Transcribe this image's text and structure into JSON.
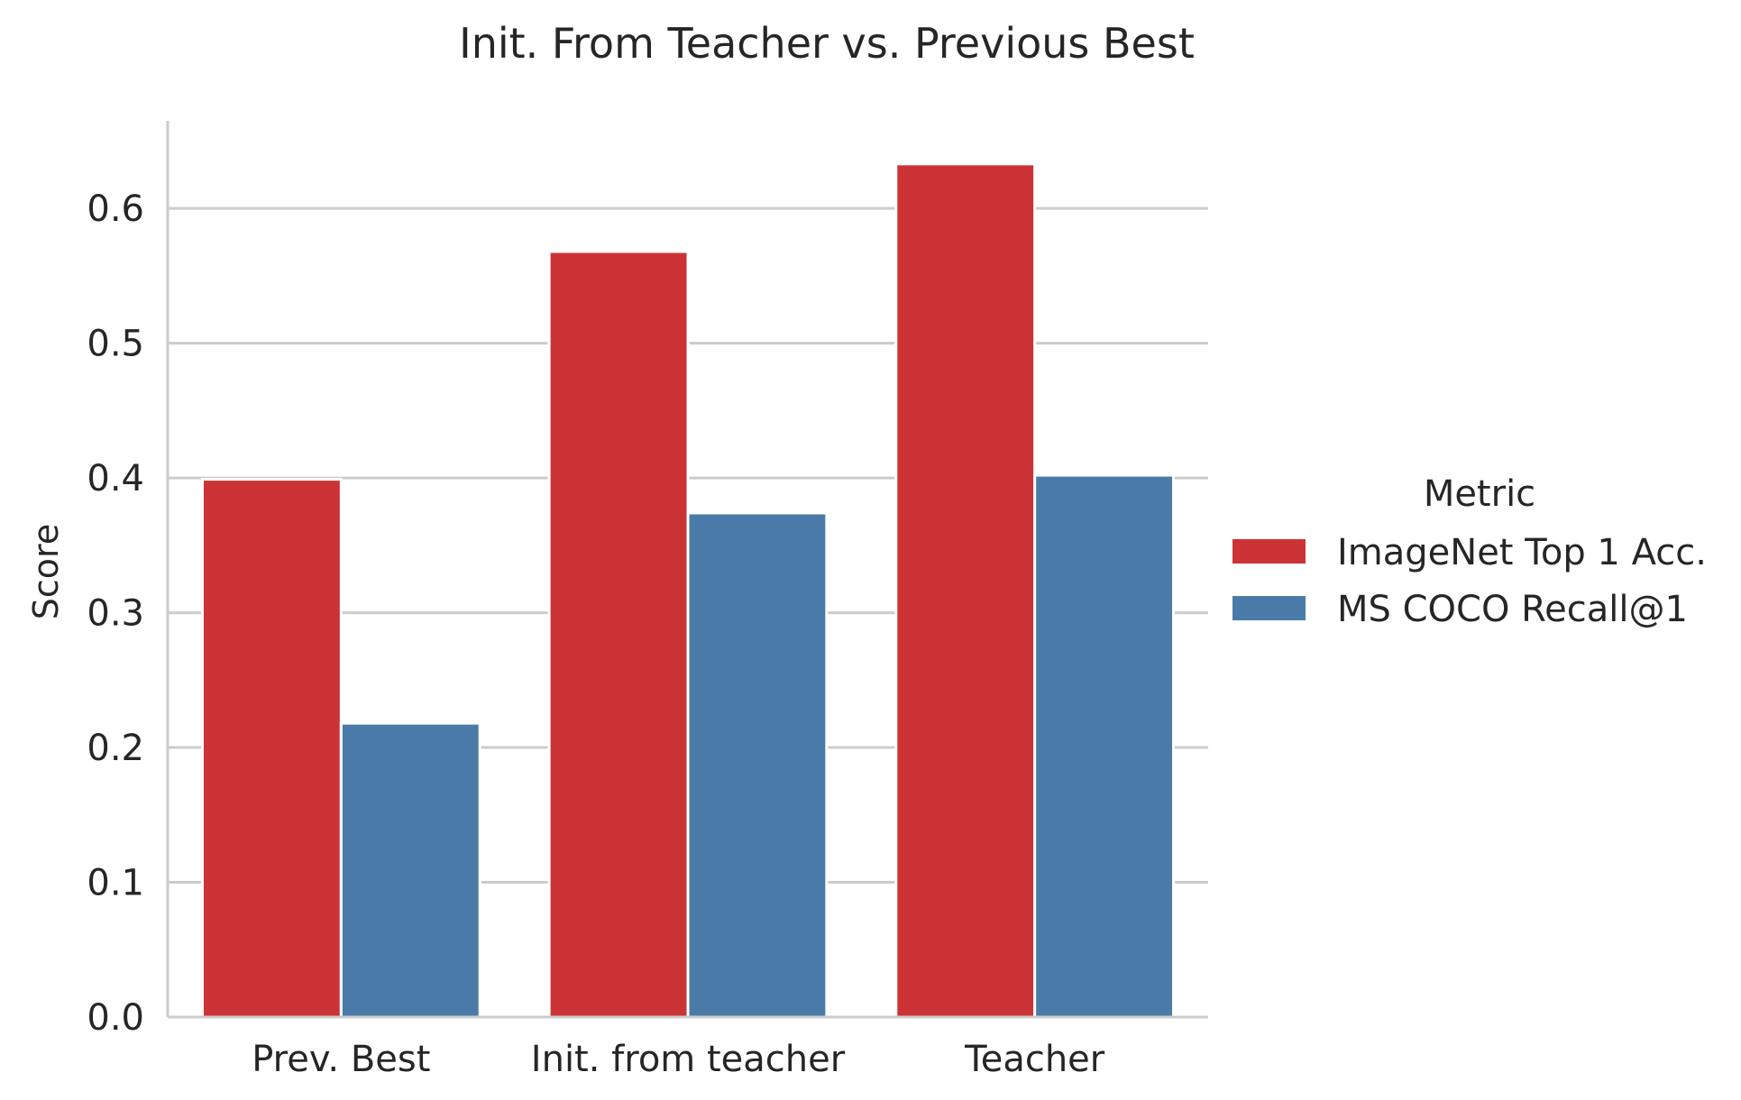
{
  "chart_data": {
    "type": "bar",
    "title": "Init. From Teacher vs. Previous Best",
    "xlabel": "",
    "ylabel": "Score",
    "categories": [
      "Prev. Best",
      "Init. from teacher",
      "Teacher"
    ],
    "series": [
      {
        "name": "ImageNet Top 1 Acc.",
        "values": [
          0.399,
          0.568,
          0.633
        ],
        "color": "#cc3336"
      },
      {
        "name": "MS COCO Recall@1",
        "values": [
          0.218,
          0.374,
          0.402
        ],
        "color": "#4a7ba8"
      }
    ],
    "ylim": [
      0,
      0.665
    ],
    "yticks": [
      0.0,
      0.1,
      0.2,
      0.3,
      0.4,
      0.5,
      0.6
    ],
    "ytick_labels": [
      "0.0",
      "0.1",
      "0.2",
      "0.3",
      "0.4",
      "0.5",
      "0.6"
    ],
    "grid": "horizontal",
    "legend": {
      "title": "Metric",
      "placement": "right"
    },
    "colors": {
      "grid": "#cccccc",
      "axis": "#cccccc",
      "text": "#262626"
    }
  }
}
